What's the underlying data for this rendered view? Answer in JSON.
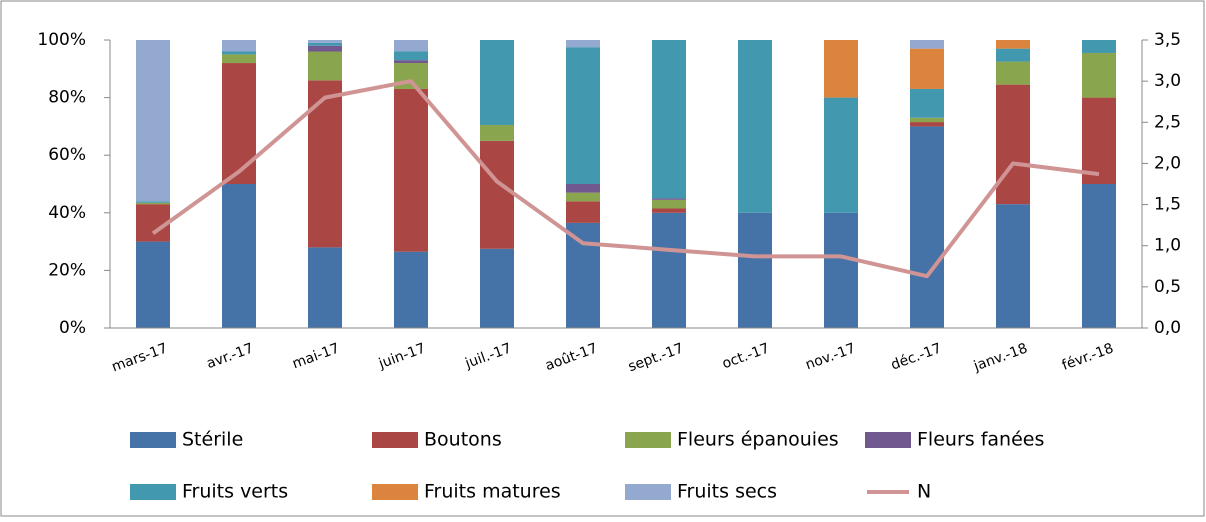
{
  "chart_data": {
    "type": "bar",
    "stacked": true,
    "categories": [
      "mars-17",
      "avr.-17",
      "mai-17",
      "juin-17",
      "juil.-17",
      "août-17",
      "sept.-17",
      "oct.-17",
      "nov.-17",
      "déc.-17",
      "janv.-18",
      "févr.-18"
    ],
    "series": [
      {
        "name": "Stérile",
        "color": "#4572a7",
        "values": [
          30,
          50,
          28,
          26.5,
          27.5,
          36.5,
          40,
          40,
          40,
          70,
          43,
          50
        ]
      },
      {
        "name": "Boutons",
        "color": "#aa4643",
        "values": [
          13,
          42,
          58,
          56.5,
          37.5,
          7.5,
          1.5,
          0,
          0,
          1.5,
          41.5,
          30
        ]
      },
      {
        "name": "Fleurs épanouies",
        "color": "#89a54e",
        "values": [
          0.5,
          3,
          10,
          9,
          5.5,
          3,
          3,
          0,
          0,
          1.5,
          8,
          15.5
        ]
      },
      {
        "name": "Fleurs fanées",
        "color": "#71588f",
        "values": [
          0,
          0,
          2,
          1,
          0,
          3,
          0.5,
          0,
          0,
          0,
          0,
          0
        ]
      },
      {
        "name": "Fruits verts",
        "color": "#4198af",
        "values": [
          0.5,
          1,
          1,
          3,
          29.5,
          47.5,
          55,
          60,
          40,
          10,
          4.5,
          4.5
        ]
      },
      {
        "name": "Fruits matures",
        "color": "#db843d",
        "values": [
          0,
          0,
          0,
          0,
          0,
          0,
          0,
          0,
          20,
          14,
          3,
          0
        ]
      },
      {
        "name": "Fruits secs",
        "color": "#93a9cf",
        "values": [
          56,
          4,
          1,
          4,
          0,
          2.5,
          0,
          0,
          0,
          3,
          0,
          0
        ]
      },
      {
        "name": "N",
        "color": "#d09494",
        "type": "line",
        "axis": "y2",
        "values": [
          1.15,
          1.9,
          2.8,
          3.0,
          1.78,
          1.03,
          0.95,
          0.87,
          0.87,
          0.63,
          2.0,
          1.87
        ]
      }
    ],
    "ylim": [
      0,
      100
    ],
    "yticks": [
      {
        "value": 0,
        "label": "0%"
      },
      {
        "value": 20,
        "label": "20%"
      },
      {
        "value": 40,
        "label": "40%"
      },
      {
        "value": 60,
        "label": "60%"
      },
      {
        "value": 80,
        "label": "80%"
      },
      {
        "value": 100,
        "label": "100%"
      }
    ],
    "y2lim": [
      0,
      3.5
    ],
    "y2ticks": [
      {
        "value": 0,
        "label": "0,0"
      },
      {
        "value": 0.5,
        "label": "0,5"
      },
      {
        "value": 1,
        "label": "1,0"
      },
      {
        "value": 1.5,
        "label": "1,5"
      },
      {
        "value": 2,
        "label": "2,0"
      },
      {
        "value": 2.5,
        "label": "2,5"
      },
      {
        "value": 3,
        "label": "3,0"
      },
      {
        "value": 3.5,
        "label": "3,5"
      }
    ],
    "legend": "bottom"
  }
}
